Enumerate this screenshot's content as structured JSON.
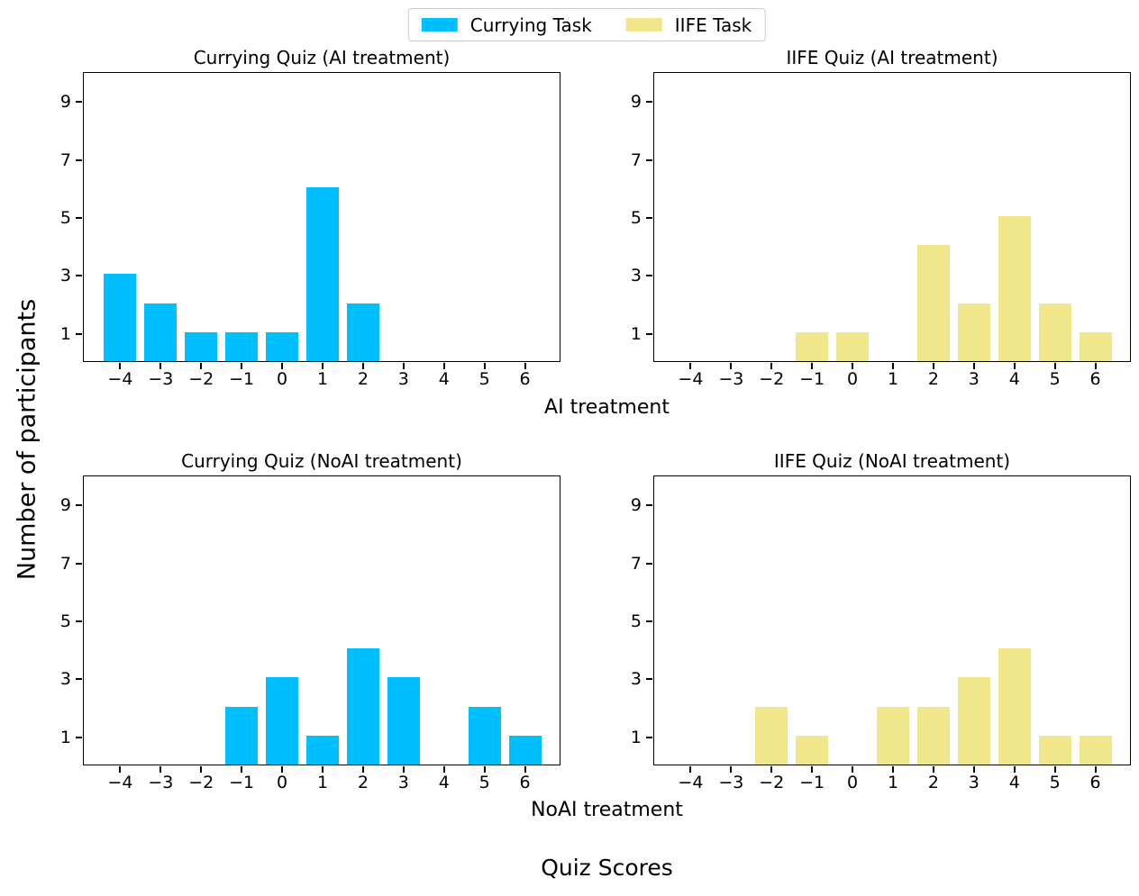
{
  "legend": {
    "items": [
      {
        "label": "Currying Task",
        "color": "#00BFFF"
      },
      {
        "label": "IIFE Task",
        "color": "#F0E68C"
      }
    ]
  },
  "axis_labels": {
    "row1": "AI treatment",
    "row2": "NoAI treatment",
    "x": "Quiz Scores",
    "y": "Number of participants"
  },
  "chart_data": [
    {
      "type": "bar",
      "title": "Currying Quiz (AI treatment)",
      "legend_series": "Currying Task",
      "color": "#00BFFF",
      "categories": [
        -4,
        -3,
        -2,
        -1,
        0,
        1,
        2,
        3,
        4,
        5,
        6
      ],
      "values": [
        3,
        2,
        1,
        1,
        1,
        6,
        2,
        0,
        0,
        0,
        0
      ],
      "xticklabels": [
        "−4",
        "−3",
        "−2",
        "−1",
        "0",
        "1",
        "2",
        "3",
        "4",
        "5",
        "6"
      ],
      "yticks": [
        1,
        3,
        5,
        7,
        9
      ],
      "yticklabels": [
        "1",
        "3",
        "5",
        "7",
        "9"
      ],
      "xlim": [
        -4.9,
        6.9
      ],
      "ylim": [
        0,
        10
      ],
      "bar_width": 0.8,
      "grid": false
    },
    {
      "type": "bar",
      "title": "IIFE Quiz (AI treatment)",
      "legend_series": "IIFE Task",
      "color": "#F0E68C",
      "categories": [
        -4,
        -3,
        -2,
        -1,
        0,
        1,
        2,
        3,
        4,
        5,
        6
      ],
      "values": [
        0,
        0,
        0,
        1,
        1,
        0,
        4,
        2,
        5,
        2,
        1
      ],
      "xticklabels": [
        "−4",
        "−3",
        "−2",
        "−1",
        "0",
        "1",
        "2",
        "3",
        "4",
        "5",
        "6"
      ],
      "yticks": [
        1,
        3,
        5,
        7,
        9
      ],
      "yticklabels": [
        "1",
        "3",
        "5",
        "7",
        "9"
      ],
      "xlim": [
        -4.9,
        6.9
      ],
      "ylim": [
        0,
        10
      ],
      "bar_width": 0.8,
      "grid": false
    },
    {
      "type": "bar",
      "title": "Currying Quiz (NoAI treatment)",
      "legend_series": "Currying Task",
      "color": "#00BFFF",
      "categories": [
        -4,
        -3,
        -2,
        -1,
        0,
        1,
        2,
        3,
        4,
        5,
        6
      ],
      "values": [
        0,
        0,
        0,
        2,
        3,
        1,
        4,
        3,
        0,
        2,
        1
      ],
      "xticklabels": [
        "−4",
        "−3",
        "−2",
        "−1",
        "0",
        "1",
        "2",
        "3",
        "4",
        "5",
        "6"
      ],
      "yticks": [
        1,
        3,
        5,
        7,
        9
      ],
      "yticklabels": [
        "1",
        "3",
        "5",
        "7",
        "9"
      ],
      "xlim": [
        -4.9,
        6.9
      ],
      "ylim": [
        0,
        10
      ],
      "bar_width": 0.8,
      "grid": false
    },
    {
      "type": "bar",
      "title": "IIFE Quiz (NoAI treatment)",
      "legend_series": "IIFE Task",
      "color": "#F0E68C",
      "categories": [
        -4,
        -3,
        -2,
        -1,
        0,
        1,
        2,
        3,
        4,
        5,
        6
      ],
      "values": [
        0,
        0,
        2,
        1,
        0,
        2,
        2,
        3,
        4,
        1,
        1
      ],
      "xticklabels": [
        "−4",
        "−3",
        "−2",
        "−1",
        "0",
        "1",
        "2",
        "3",
        "4",
        "5",
        "6"
      ],
      "yticks": [
        1,
        3,
        5,
        7,
        9
      ],
      "yticklabels": [
        "1",
        "3",
        "5",
        "7",
        "9"
      ],
      "xlim": [
        -4.9,
        6.9
      ],
      "ylim": [
        0,
        10
      ],
      "bar_width": 0.8,
      "grid": false
    }
  ]
}
